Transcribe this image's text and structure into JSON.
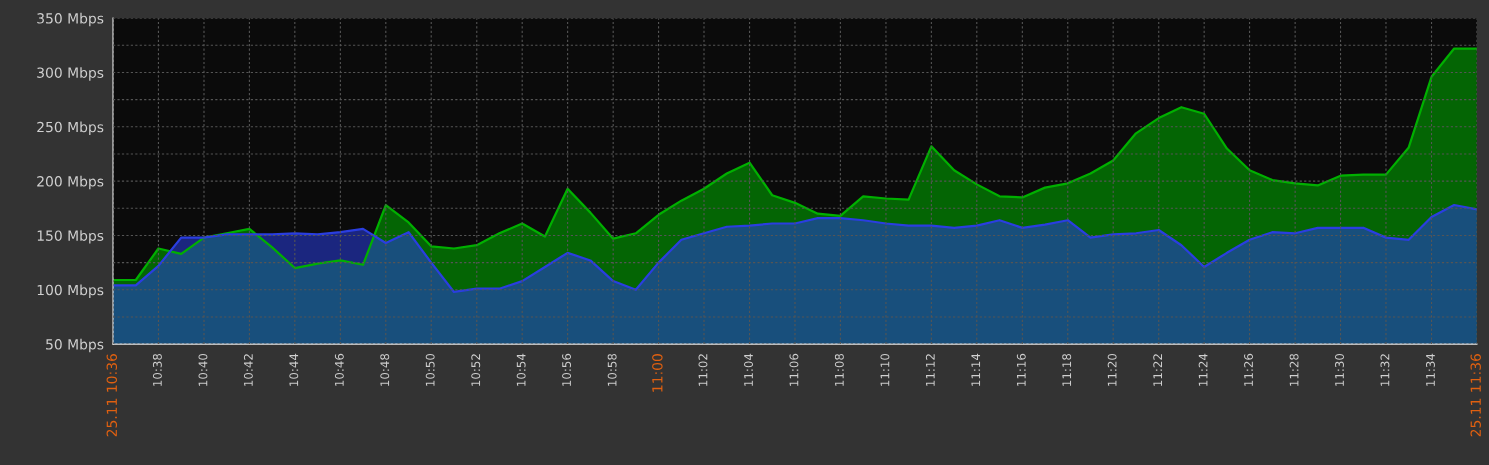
{
  "chart_data": {
    "type": "area",
    "x": [
      10.6,
      10.6167,
      10.6333,
      10.65,
      10.6667,
      10.6833,
      10.7,
      10.7167,
      10.7333,
      10.75,
      10.7667,
      10.7833,
      10.8,
      10.8167,
      10.8333,
      10.85,
      10.8667,
      10.8833,
      10.9,
      10.9167,
      10.9333,
      10.95,
      10.9667,
      10.9833,
      11.0,
      11.0167,
      11.0333,
      11.05,
      11.0667,
      11.0833,
      11.1,
      11.1167,
      11.1333,
      11.15,
      11.1667,
      11.1833,
      11.2,
      11.2167,
      11.2333,
      11.25,
      11.2667,
      11.2833,
      11.3,
      11.3167,
      11.3333,
      11.35,
      11.3667,
      11.3833,
      11.4,
      11.4167,
      11.4333,
      11.45,
      11.4667,
      11.4833,
      11.5,
      11.5167,
      11.5333,
      11.55,
      11.5667,
      11.5833,
      11.6
    ],
    "series": [
      {
        "color": "#00b000",
        "values": [
          109,
          109,
          138,
          133,
          148,
          152,
          156,
          139,
          120,
          124,
          127,
          123,
          178,
          162,
          140,
          138,
          141,
          152,
          161,
          149,
          193,
          171,
          147,
          152,
          169,
          182,
          193,
          207,
          217,
          187,
          180,
          170,
          168,
          186,
          184,
          183,
          232,
          210,
          197,
          186,
          185,
          194,
          198,
          207,
          219,
          244,
          258,
          268,
          262,
          230,
          210,
          201,
          198,
          196,
          205,
          206,
          206,
          231,
          296,
          322,
          322
        ]
      },
      {
        "color": "#2a3ee0",
        "values": [
          104,
          104,
          122,
          148,
          148,
          151,
          151,
          151,
          152,
          151,
          153,
          156,
          143,
          153,
          125,
          98,
          101,
          101,
          108,
          121,
          134,
          127,
          108,
          100,
          125,
          146,
          152,
          158,
          159,
          161,
          161,
          166,
          166,
          164,
          161,
          159,
          159,
          157,
          159,
          164,
          157,
          160,
          164,
          148,
          151,
          152,
          155,
          141,
          121,
          134,
          146,
          153,
          152,
          157,
          157,
          157,
          148,
          146,
          167,
          178,
          174
        ]
      }
    ],
    "ylim": [
      50,
      350
    ],
    "yticks": [
      {
        "value": 50,
        "label": "50 Mbps"
      },
      {
        "value": 75,
        "label": null
      },
      {
        "value": 100,
        "label": "100 Mbps"
      },
      {
        "value": 125,
        "label": null
      },
      {
        "value": 150,
        "label": "150 Mbps"
      },
      {
        "value": 175,
        "label": null
      },
      {
        "value": 200,
        "label": "200 Mbps"
      },
      {
        "value": 225,
        "label": null
      },
      {
        "value": 250,
        "label": "250 Mbps"
      },
      {
        "value": 275,
        "label": null
      },
      {
        "value": 300,
        "label": "300 Mbps"
      },
      {
        "value": 325,
        "label": null
      },
      {
        "value": 350,
        "label": "350 Mbps"
      }
    ],
    "xlim": [
      10.6,
      11.6
    ],
    "xticks": [
      {
        "value": 10.6,
        "label": "25.11 10:36"
      },
      {
        "value": 10.6333,
        "label": "10:38"
      },
      {
        "value": 10.6667,
        "label": "10:40"
      },
      {
        "value": 10.7,
        "label": "10:42"
      },
      {
        "value": 10.7333,
        "label": "10:44"
      },
      {
        "value": 10.7667,
        "label": "10:46"
      },
      {
        "value": 10.8,
        "label": "10:48"
      },
      {
        "value": 10.8333,
        "label": "10:50"
      },
      {
        "value": 10.8667,
        "label": "10:52"
      },
      {
        "value": 10.9,
        "label": "10:54"
      },
      {
        "value": 10.9333,
        "label": "10:56"
      },
      {
        "value": 10.9667,
        "label": "10:58"
      },
      {
        "value": 11.0,
        "label": "11:00"
      },
      {
        "value": 11.0333,
        "label": "11:02"
      },
      {
        "value": 11.0667,
        "label": "11:04"
      },
      {
        "value": 11.1,
        "label": "11:06"
      },
      {
        "value": 11.1333,
        "label": "11:08"
      },
      {
        "value": 11.1667,
        "label": "11:10"
      },
      {
        "value": 11.2,
        "label": "11:12"
      },
      {
        "value": 11.2333,
        "label": "11:14"
      },
      {
        "value": 11.2667,
        "label": "11:16"
      },
      {
        "value": 11.3,
        "label": "11:18"
      },
      {
        "value": 11.3333,
        "label": "11:20"
      },
      {
        "value": 11.3667,
        "label": "11:22"
      },
      {
        "value": 11.4,
        "label": "11:24"
      },
      {
        "value": 11.4333,
        "label": "11:26"
      },
      {
        "value": 11.4667,
        "label": "11:28"
      },
      {
        "value": 11.5,
        "label": "11:30"
      },
      {
        "value": 11.5333,
        "label": "11:32"
      },
      {
        "value": 11.5667,
        "label": "11:34"
      },
      {
        "value": 11.6,
        "label": "25.11 11:36"
      }
    ],
    "grid": true
  }
}
